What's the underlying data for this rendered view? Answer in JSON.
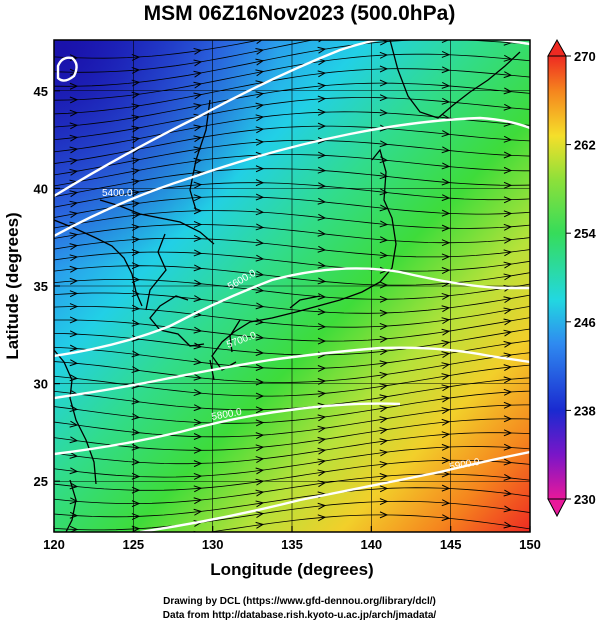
{
  "title": "MSM 06Z16Nov2023 (500.0hPa)",
  "map": {
    "xlabel": "Longitude (degrees)",
    "ylabel": "Latitude  (degrees)",
    "xticks": [
      "120",
      "125",
      "130",
      "135",
      "140",
      "145",
      "150"
    ],
    "yticks": [
      "25",
      "30",
      "35",
      "40",
      "45"
    ],
    "xlim": [
      120,
      150
    ],
    "ylim": [
      22.4,
      47.6
    ]
  },
  "colorbar": {
    "min": 230,
    "max": 270,
    "ticks": [
      "230",
      "238",
      "246",
      "254",
      "262",
      "270"
    ]
  },
  "contours": [
    {
      "label": "5400.0"
    },
    {
      "label": "5600.0"
    },
    {
      "label": "5700.0"
    },
    {
      "label": "5800.0"
    },
    {
      "label": "5900.0"
    }
  ],
  "credits": {
    "line1": "Drawing by DCL (https://www.gfd-dennou.org/library/dcl/)",
    "line2": "Data from http://database.rish.kyoto-u.ac.jp/arch/jmadata/"
  }
}
